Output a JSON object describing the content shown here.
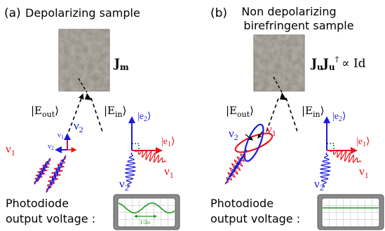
{
  "panel_a": {
    "letter": "(a)",
    "title": "Depolarizing sample",
    "sample_matrix": "J",
    "sample_matrix_sub": "m",
    "e_out": "|E",
    "e_out_sub": "out",
    "e_in": "|E",
    "e_in_sub": "in",
    "nu1": "ν",
    "nu1_sub": "1",
    "nu2": "ν",
    "nu2_sub": "2",
    "e1": "|e",
    "e1_sub": "1",
    "e2": "|e",
    "e2_sub": "2",
    "photodiode_line1": "Photodiode",
    "photodiode_line2": "output voltage :",
    "scope_label": "1/Δν"
  },
  "panel_b": {
    "letter": "(b)",
    "title_line1": "Non depolarizing",
    "title_line2": "birefringent sample",
    "sample_matrix": "J",
    "sample_matrix_sub": "u",
    "sample_matrix2": "J",
    "sample_matrix2_sub": "u",
    "dagger": "†",
    "proportional": "∝ Id",
    "e_out": "|E",
    "e_out_sub": "out",
    "e_in": "|E",
    "e_in_sub": "in",
    "nu1": "ν",
    "nu1_sub": "1",
    "nu2": "ν",
    "nu2_sub": "2",
    "e1": "|e",
    "e1_sub": "1",
    "e2": "|e",
    "e2_sub": "2",
    "photodiode_line1": "Photodiode",
    "photodiode_line2": "output voltage :"
  },
  "colors": {
    "red": "#e8141a",
    "blue": "#1a1adf",
    "green": "#1e9a1e",
    "sample": "#8f8a80",
    "scope_frame": "#808080"
  }
}
